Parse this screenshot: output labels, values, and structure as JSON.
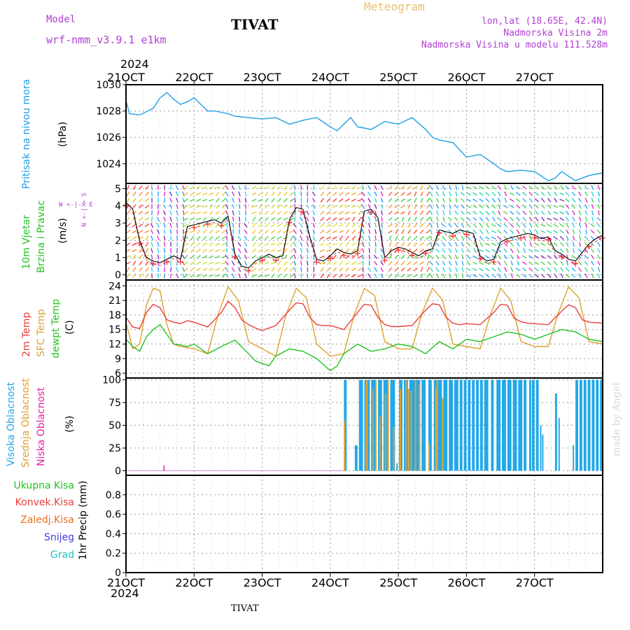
{
  "header": {
    "model_label": "Model",
    "model_name": "wrf-nmm_v3.9.1 e1km",
    "title": "TIVAT",
    "meteogram": "Meteogram",
    "lonlat": "lon,lat (18.65E, 42.4N)",
    "altitude": "Nadmorska Visina 2m",
    "model_altitude": "Nadmorska Visina u modelu 111.528m",
    "year_top": "2024",
    "year_bottom": "2024",
    "footer_station": "TIVAT",
    "credit": "made by Angel"
  },
  "colors": {
    "pressure": "#1e9fe6",
    "temp2m": "#e8403c",
    "sfc_temp": "#e0a030",
    "dewpoint": "#22c422",
    "high_cloud": "#22a8e8",
    "mid_cloud": "#e0a030",
    "low_cloud": "#e020a0",
    "purple_text": "#b040d0",
    "meteogram_text": "#e8c070"
  },
  "x_axis": {
    "ticks": [
      "21OCT",
      "22OCT",
      "23OCT",
      "24OCT",
      "25OCT",
      "26OCT",
      "27OCT"
    ]
  },
  "panel_labels": {
    "pressure": [
      "Pritisak na nivou mora",
      "(hPa)"
    ],
    "wind": [
      "10m Vjetar",
      "Brzina i Pravac",
      "(m/s)"
    ],
    "wind_compass": [
      "W  <-|->  E",
      "N  <-|->  S"
    ],
    "temp": [
      "2m Temp",
      "SFC Temp",
      "dewpt Temp",
      "(C)"
    ],
    "cloud": [
      "Visoka Oblacnost",
      "Srednja Oblacnost",
      "Niska Oblacnost",
      "(%)"
    ],
    "precip": [
      "Ukupna Kisa",
      "Konvek.Kisa",
      "Zaledj.Kisa",
      "Snijeg",
      "Grad",
      "1hr Precip (mm)"
    ]
  },
  "chart_data": [
    {
      "type": "line",
      "panel": "pressure",
      "ylabel": "(hPa)",
      "ylim": [
        1022.5,
        1030
      ],
      "yticks": [
        1024,
        1026,
        1028,
        1030
      ],
      "grid": true,
      "series": [
        {
          "name": "Pritisak na nivou mora",
          "x": [
            0,
            0.05,
            0.2,
            0.4,
            0.5,
            0.6,
            0.7,
            0.8,
            0.9,
            1.0,
            1.1,
            1.2,
            1.3,
            1.4,
            1.5,
            1.6,
            1.8,
            2.0,
            2.2,
            2.4,
            2.6,
            2.8,
            3.0,
            3.1,
            3.2,
            3.3,
            3.4,
            3.5,
            3.6,
            3.8,
            4.0,
            4.2,
            4.4,
            4.5,
            4.6,
            4.8,
            5.0,
            5.2,
            5.4,
            5.5,
            5.6,
            5.8,
            6.0,
            6.2,
            6.3,
            6.4,
            6.6,
            6.8,
            7.0
          ],
          "values": [
            1028.8,
            1027.8,
            1027.7,
            1028.2,
            1029.0,
            1029.4,
            1028.9,
            1028.5,
            1028.7,
            1029.0,
            1028.5,
            1028.0,
            1028.0,
            1027.9,
            1027.8,
            1027.6,
            1027.5,
            1027.4,
            1027.5,
            1027.0,
            1027.3,
            1027.5,
            1026.8,
            1026.5,
            1027.0,
            1027.5,
            1026.8,
            1026.7,
            1026.6,
            1027.2,
            1027.0,
            1027.5,
            1026.6,
            1026.0,
            1025.8,
            1025.6,
            1024.5,
            1024.7,
            1024.0,
            1023.6,
            1023.4,
            1023.5,
            1023.4,
            1022.7,
            1022.9,
            1023.4,
            1022.7,
            1023.1,
            1023.3
          ]
        }
      ]
    },
    {
      "type": "line",
      "panel": "wind",
      "ylabel": "(m/s)",
      "ylim": [
        -0.3,
        5.3
      ],
      "yticks": [
        0,
        1,
        2,
        3,
        4,
        5
      ],
      "grid": true,
      "series": [
        {
          "name": "10m Vjetar Brzina",
          "x": [
            0,
            0.1,
            0.2,
            0.3,
            0.4,
            0.5,
            0.6,
            0.7,
            0.8,
            0.9,
            1.0,
            1.1,
            1.2,
            1.3,
            1.4,
            1.5,
            1.6,
            1.7,
            1.8,
            1.9,
            2.0,
            2.1,
            2.2,
            2.3,
            2.4,
            2.5,
            2.6,
            2.7,
            2.8,
            2.9,
            3.0,
            3.1,
            3.2,
            3.3,
            3.4,
            3.5,
            3.6,
            3.7,
            3.8,
            3.9,
            4.0,
            4.1,
            4.2,
            4.3,
            4.4,
            4.5,
            4.6,
            4.7,
            4.8,
            4.9,
            5.0,
            5.1,
            5.2,
            5.3,
            5.4,
            5.5,
            5.6,
            5.7,
            5.8,
            5.9,
            6.0,
            6.1,
            6.2,
            6.3,
            6.4,
            6.5,
            6.6,
            6.7,
            6.8,
            6.9,
            7.0
          ],
          "values": [
            4.2,
            3.8,
            2.0,
            1.0,
            0.8,
            0.7,
            0.9,
            1.1,
            0.9,
            2.8,
            2.9,
            3.0,
            3.1,
            3.2,
            3.0,
            3.4,
            1.2,
            0.5,
            0.4,
            0.8,
            1.0,
            1.2,
            1.0,
            1.1,
            3.2,
            3.9,
            3.8,
            2.2,
            0.9,
            0.8,
            1.1,
            1.5,
            1.3,
            1.2,
            1.4,
            3.7,
            3.8,
            3.3,
            1.0,
            1.4,
            1.6,
            1.5,
            1.3,
            1.1,
            1.4,
            1.5,
            2.6,
            2.5,
            2.4,
            2.6,
            2.5,
            2.4,
            1.1,
            0.8,
            0.9,
            1.9,
            2.1,
            2.2,
            2.3,
            2.4,
            2.3,
            2.1,
            2.2,
            1.4,
            1.2,
            0.9,
            0.8,
            1.3,
            1.8,
            2.1,
            2.3
          ]
        }
      ]
    },
    {
      "type": "line",
      "panel": "temperature",
      "ylabel": "(C)",
      "ylim": [
        5,
        25.2
      ],
      "yticks": [
        6,
        9,
        12,
        15,
        18,
        21,
        24
      ],
      "grid": true,
      "series": [
        {
          "name": "2m Temp",
          "x": [
            0,
            0.1,
            0.2,
            0.3,
            0.4,
            0.5,
            0.6,
            0.7,
            0.8,
            0.9,
            1.0,
            1.2,
            1.4,
            1.5,
            1.6,
            1.7,
            1.8,
            1.9,
            2.0,
            2.2,
            2.4,
            2.5,
            2.6,
            2.7,
            2.8,
            2.9,
            3.0,
            3.2,
            3.4,
            3.5,
            3.6,
            3.7,
            3.8,
            3.9,
            4.0,
            4.2,
            4.4,
            4.5,
            4.6,
            4.7,
            4.8,
            4.9,
            5.0,
            5.2,
            5.4,
            5.5,
            5.6,
            5.7,
            5.8,
            5.9,
            6.0,
            6.2,
            6.4,
            6.5,
            6.6,
            6.7,
            6.8,
            7.0
          ],
          "values": [
            17.5,
            15.5,
            15.2,
            18.5,
            20.2,
            19.5,
            17.0,
            16.5,
            16.2,
            16.8,
            16.5,
            15.5,
            18.5,
            20.8,
            19.5,
            17.0,
            16.0,
            15.3,
            14.8,
            15.8,
            19.0,
            20.5,
            20.3,
            17.5,
            16.0,
            15.8,
            15.8,
            15.0,
            18.5,
            20.2,
            20.0,
            17.5,
            16.0,
            15.6,
            15.6,
            15.8,
            19.0,
            20.3,
            20.1,
            17.5,
            16.3,
            16.0,
            16.2,
            16.0,
            18.5,
            20.2,
            20.0,
            17.3,
            16.6,
            16.3,
            16.2,
            16.0,
            18.8,
            20.1,
            19.5,
            17.0,
            16.5,
            16.3
          ]
        },
        {
          "name": "SFC Temp",
          "x": [
            0,
            0.1,
            0.2,
            0.3,
            0.4,
            0.5,
            0.6,
            0.7,
            0.8,
            1.0,
            1.2,
            1.35,
            1.5,
            1.65,
            1.8,
            2.0,
            2.2,
            2.35,
            2.5,
            2.65,
            2.8,
            3.0,
            3.2,
            3.35,
            3.5,
            3.65,
            3.8,
            4.0,
            4.2,
            4.35,
            4.5,
            4.65,
            4.8,
            5.0,
            5.2,
            5.35,
            5.5,
            5.65,
            5.8,
            6.0,
            6.2,
            6.35,
            6.5,
            6.65,
            6.8,
            7.0
          ],
          "values": [
            16.5,
            11.0,
            12.0,
            20.0,
            23.5,
            23.0,
            16.0,
            12.0,
            11.5,
            11.0,
            10.0,
            18.0,
            23.8,
            21.0,
            12.5,
            11.0,
            9.5,
            18.0,
            23.5,
            21.5,
            12.0,
            9.5,
            10.0,
            18.0,
            23.5,
            22.0,
            12.5,
            11.0,
            11.0,
            18.5,
            23.5,
            21.0,
            12.0,
            11.5,
            11.0,
            18.0,
            23.5,
            21.0,
            12.5,
            11.5,
            11.5,
            18.5,
            23.8,
            21.5,
            12.5,
            12.0
          ]
        },
        {
          "name": "dewpt Temp",
          "x": [
            0,
            0.1,
            0.2,
            0.3,
            0.4,
            0.5,
            0.6,
            0.7,
            0.8,
            0.9,
            1.0,
            1.2,
            1.4,
            1.6,
            1.8,
            1.9,
            2.0,
            2.1,
            2.2,
            2.4,
            2.6,
            2.8,
            3.0,
            3.1,
            3.2,
            3.4,
            3.6,
            3.8,
            4.0,
            4.2,
            4.4,
            4.6,
            4.8,
            5.0,
            5.2,
            5.4,
            5.6,
            5.8,
            6.0,
            6.2,
            6.4,
            6.6,
            6.8,
            7.0
          ],
          "values": [
            13.0,
            11.5,
            10.5,
            13.5,
            15.0,
            16.0,
            14.0,
            12.0,
            11.8,
            11.5,
            12.0,
            10.0,
            11.5,
            12.8,
            10.0,
            8.5,
            8.0,
            7.5,
            9.5,
            11.0,
            10.5,
            9.0,
            6.5,
            7.5,
            10.0,
            12.0,
            10.5,
            11.0,
            12.0,
            11.5,
            10.0,
            12.5,
            11.0,
            13.0,
            12.5,
            13.5,
            14.5,
            14.0,
            13.0,
            14.0,
            15.0,
            14.5,
            13.0,
            12.5
          ]
        }
      ]
    },
    {
      "type": "bar",
      "panel": "cloud",
      "ylabel": "(%)",
      "ylim": [
        -5,
        102
      ],
      "yticks": [
        0,
        25,
        50,
        75,
        100
      ],
      "grid": true,
      "high_cloud_intervals": [
        [
          3.2,
          3.24,
          100
        ],
        [
          3.36,
          3.4,
          28
        ],
        [
          3.42,
          3.48,
          100
        ],
        [
          3.5,
          3.58,
          100
        ],
        [
          3.6,
          3.68,
          100
        ],
        [
          3.7,
          3.76,
          100
        ],
        [
          3.78,
          3.85,
          100
        ],
        [
          3.88,
          3.95,
          100
        ],
        [
          3.97,
          3.99,
          8
        ],
        [
          4.01,
          4.06,
          100
        ],
        [
          4.08,
          4.14,
          100
        ],
        [
          4.16,
          4.24,
          100
        ],
        [
          4.26,
          4.32,
          100
        ],
        [
          4.34,
          4.4,
          100
        ],
        [
          4.44,
          4.49,
          100
        ],
        [
          4.52,
          4.56,
          100
        ],
        [
          4.58,
          4.64,
          100
        ],
        [
          4.66,
          4.72,
          100
        ],
        [
          4.74,
          4.8,
          100
        ],
        [
          4.82,
          4.88,
          100
        ],
        [
          4.9,
          4.94,
          100
        ],
        [
          4.96,
          5.0,
          100
        ],
        [
          5.02,
          5.06,
          100
        ],
        [
          5.08,
          5.12,
          100
        ],
        [
          5.14,
          5.18,
          100
        ],
        [
          5.2,
          5.24,
          100
        ],
        [
          5.26,
          5.32,
          100
        ],
        [
          5.36,
          5.4,
          100
        ],
        [
          5.44,
          5.5,
          100
        ],
        [
          5.52,
          5.58,
          100
        ],
        [
          5.6,
          5.66,
          100
        ],
        [
          5.68,
          5.74,
          100
        ],
        [
          5.76,
          5.82,
          100
        ],
        [
          5.84,
          5.88,
          100
        ],
        [
          5.92,
          5.95,
          100
        ],
        [
          5.96,
          6.0,
          100
        ],
        [
          6.02,
          6.06,
          100
        ],
        [
          6.08,
          6.1,
          50
        ],
        [
          6.11,
          6.13,
          40
        ],
        [
          6.3,
          6.33,
          85
        ],
        [
          6.35,
          6.37,
          58
        ],
        [
          6.56,
          6.58,
          28
        ],
        [
          6.6,
          6.64,
          100
        ],
        [
          6.66,
          6.7,
          100
        ],
        [
          6.72,
          6.76,
          100
        ],
        [
          6.78,
          6.82,
          100
        ],
        [
          6.84,
          6.88,
          100
        ],
        [
          6.9,
          6.94,
          100
        ],
        [
          6.96,
          7.0,
          100
        ]
      ],
      "mid_cloud_intervals": [
        [
          3.2,
          3.22,
          55
        ],
        [
          3.52,
          3.55,
          100
        ],
        [
          3.62,
          3.64,
          90
        ],
        [
          3.66,
          3.68,
          100
        ],
        [
          3.72,
          3.74,
          60
        ],
        [
          3.8,
          3.82,
          85
        ],
        [
          3.84,
          3.86,
          100
        ],
        [
          3.92,
          3.94,
          48
        ],
        [
          4.02,
          4.04,
          90
        ],
        [
          4.1,
          4.12,
          100
        ],
        [
          4.14,
          4.16,
          90
        ],
        [
          4.18,
          4.2,
          88
        ],
        [
          4.24,
          4.26,
          100
        ],
        [
          4.3,
          4.32,
          95
        ],
        [
          4.44,
          4.46,
          30
        ],
        [
          4.54,
          4.56,
          90
        ],
        [
          4.56,
          4.58,
          100
        ],
        [
          4.64,
          4.66,
          80
        ]
      ],
      "low_cloud_intervals": [
        [
          0.55,
          0.56,
          6
        ]
      ]
    },
    {
      "type": "bar",
      "panel": "precip",
      "ylabel": "1hr Precip (mm)",
      "ylim": [
        0,
        1.0
      ],
      "yticks": [
        0,
        0.2,
        0.4,
        0.6,
        0.8
      ],
      "grid": true,
      "values": []
    }
  ]
}
